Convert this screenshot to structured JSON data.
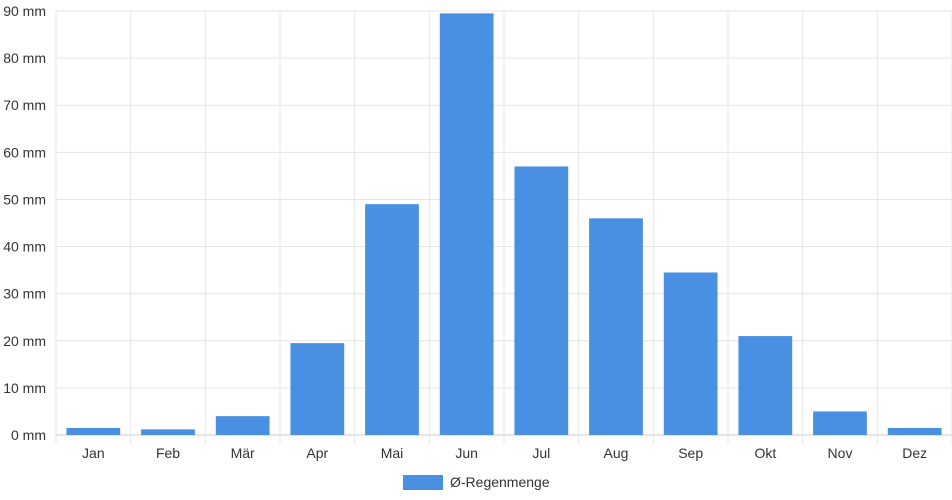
{
  "chart_data": {
    "type": "bar",
    "categories": [
      "Jan",
      "Feb",
      "Mär",
      "Apr",
      "Mai",
      "Jun",
      "Jul",
      "Aug",
      "Sep",
      "Okt",
      "Nov",
      "Dez"
    ],
    "series": [
      {
        "name": "Ø-Regenmenge",
        "color": "#4a90e2",
        "values": [
          1.5,
          1.2,
          4,
          19.5,
          49,
          89.5,
          57,
          46,
          34.5,
          21,
          5,
          1.5
        ]
      }
    ],
    "y_ticks": [
      "0 mm",
      "10 mm",
      "20 mm",
      "30 mm",
      "40 mm",
      "50 mm",
      "60 mm",
      "70 mm",
      "80 mm",
      "90 mm"
    ],
    "ylim": [
      0,
      90
    ],
    "grid": true,
    "legend_position": "bottom-center"
  }
}
